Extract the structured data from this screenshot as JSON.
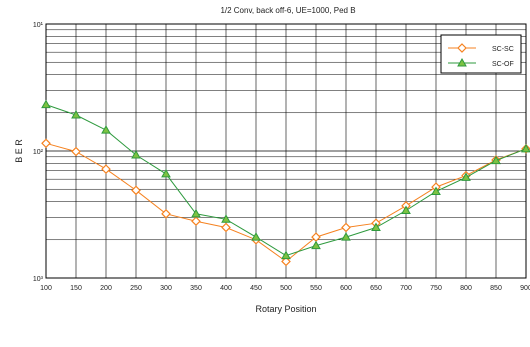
{
  "chart_data": {
    "type": "line",
    "title": "1/2 Conv, back off-6, UE=1000, Ped B",
    "xlabel": "Rotary Position",
    "ylabel": "B E R",
    "x": [
      100,
      150,
      200,
      250,
      300,
      350,
      400,
      450,
      500,
      550,
      600,
      650,
      700,
      750,
      800,
      850,
      900
    ],
    "xlim": [
      100,
      900
    ],
    "yscale": "log",
    "ylim": [
      0.001,
      0.1
    ],
    "ytick_labels": [
      "10³",
      "10²",
      "10¹"
    ],
    "grid": true,
    "legend_position": "top-right",
    "series": [
      {
        "name": "SC-SC",
        "color": "#f58220",
        "marker": "diamond",
        "values": [
          0.0115,
          0.0099,
          0.0072,
          0.0049,
          0.0032,
          0.0028,
          0.0025,
          0.002,
          0.00135,
          0.0021,
          0.0025,
          0.0027,
          0.0037,
          0.0052,
          0.0064,
          0.0085,
          0.0104
        ]
      },
      {
        "name": "SC-OF",
        "color": "#2e9a3e",
        "marker": "triangle",
        "values": [
          0.0232,
          0.0192,
          0.0146,
          0.0093,
          0.0066,
          0.0032,
          0.0029,
          0.0021,
          0.0015,
          0.0018,
          0.0021,
          0.0025,
          0.0034,
          0.0048,
          0.0062,
          0.0084,
          0.0104
        ]
      }
    ]
  }
}
